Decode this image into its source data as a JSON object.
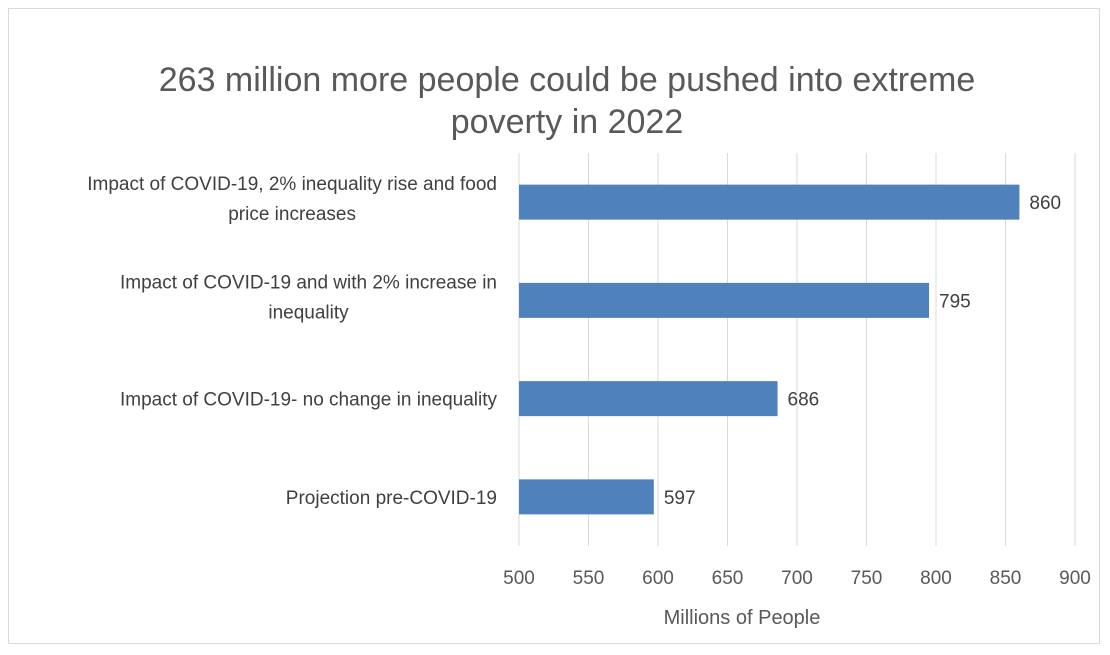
{
  "chart_data": {
    "type": "bar",
    "orientation": "horizontal",
    "title_lines": [
      "263 million more people could be pushed into extreme",
      "poverty in 2022"
    ],
    "categories": [
      [
        "Impact of COVID-19, 2% inequality rise and food",
        "price increases"
      ],
      [
        "Impact of COVID-19 and with 2% increase in",
        "inequality"
      ],
      [
        "Impact of COVID-19- no change in inequality"
      ],
      [
        "Projection pre-COVID-19"
      ]
    ],
    "values": [
      860,
      795,
      686,
      597
    ],
    "data_labels": [
      "860",
      "795",
      "686",
      "597"
    ],
    "xlabel": "Millions of People",
    "xlim": [
      500,
      900
    ],
    "xticks": [
      500,
      550,
      600,
      650,
      700,
      750,
      800,
      850,
      900
    ],
    "grid": "vertical",
    "legend": "none",
    "colors": {
      "bar": "#4F81BD",
      "grid": "#d9d9d9"
    }
  }
}
